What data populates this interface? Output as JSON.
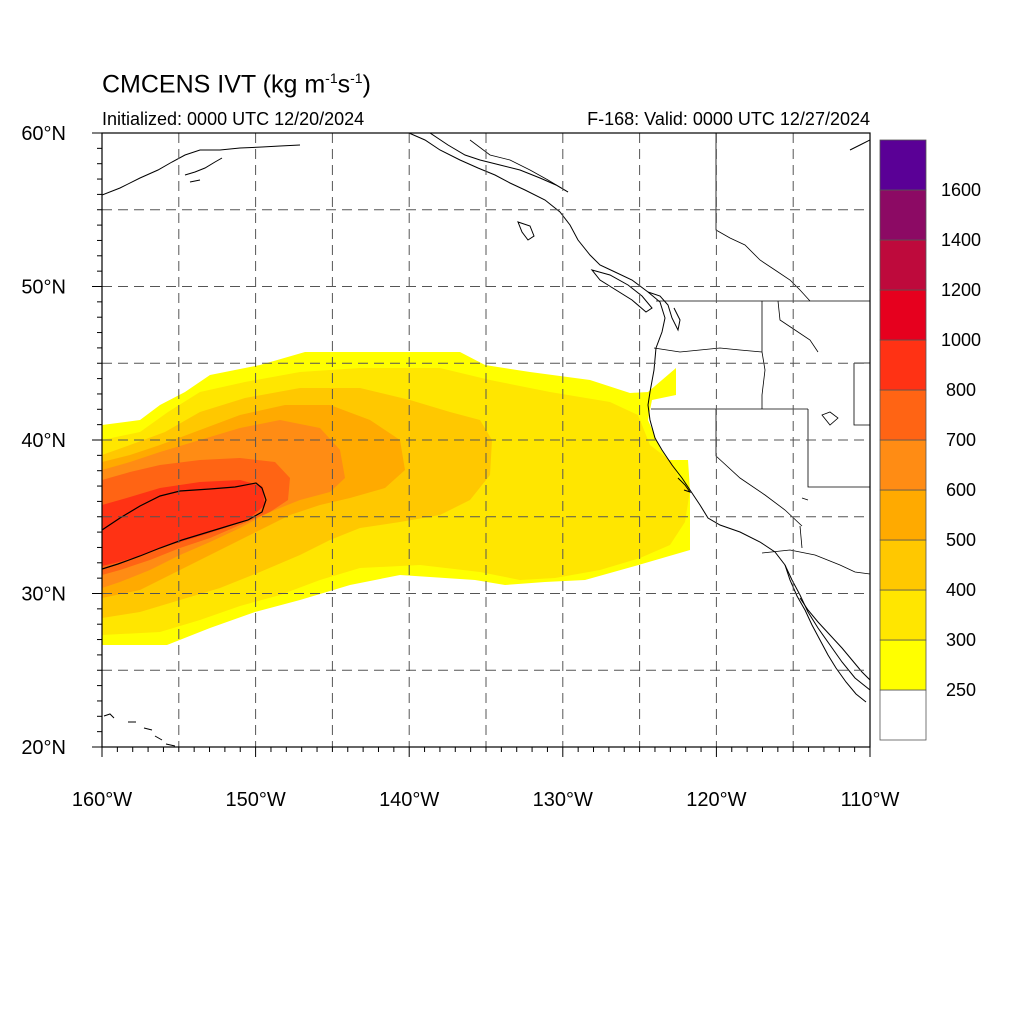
{
  "title": {
    "text": "CMCENS IVT (kg m",
    "sup1": "-1",
    "mid": "s",
    "sup2": "-1",
    "end": ")"
  },
  "initialized": "Initialized: 0000 UTC 12/20/2024",
  "valid": "F-168: Valid: 0000 UTC 12/27/2024",
  "lat_labels": [
    "20°N",
    "30°N",
    "40°N",
    "50°N",
    "60°N"
  ],
  "lon_labels": [
    "160°W",
    "150°W",
    "140°W",
    "130°W",
    "120°W",
    "110°W"
  ],
  "colorbar": {
    "labels": [
      "250",
      "300",
      "400",
      "500",
      "600",
      "700",
      "800",
      "1000",
      "1200",
      "1400",
      "1600"
    ],
    "colors": [
      "#ffffff",
      "#ffff00",
      "#ffe600",
      "#ffc800",
      "#ffaa00",
      "#ff8c14",
      "#ff6414",
      "#ff3214",
      "#e6001e",
      "#be0a3c",
      "#8c0a64",
      "#5a0096"
    ]
  },
  "chart_data": {
    "type": "heatmap",
    "variable": "IVT (kg m-1 s-1)",
    "xlim": [
      -160,
      -110
    ],
    "ylim": [
      20,
      60
    ],
    "levels": [
      250,
      300,
      400,
      500,
      600,
      700,
      800,
      1000,
      1200,
      1400,
      1600
    ],
    "features": [
      {
        "level_min": 250,
        "lon_range": [
          -160,
          -122
        ],
        "lat_range": [
          27,
          45.5
        ]
      },
      {
        "level_min": 300,
        "lon_range": [
          -160,
          -123
        ],
        "lat_range": [
          28,
          44
        ]
      },
      {
        "level_min": 400,
        "lon_range": [
          -160,
          -133
        ],
        "lat_range": [
          29,
          42
        ]
      },
      {
        "level_min": 500,
        "lon_range": [
          -160,
          -140
        ],
        "lat_range": [
          30,
          40
        ]
      },
      {
        "level_min": 600,
        "lon_range": [
          -160,
          -145
        ],
        "lat_range": [
          31,
          39
        ]
      },
      {
        "level_min": 700,
        "lon_range": [
          -160,
          -148
        ],
        "lat_range": [
          32,
          37.5
        ]
      },
      {
        "level_min": 800,
        "lon_range": [
          -160,
          -150
        ],
        "lat_range": [
          32,
          37
        ]
      }
    ]
  }
}
